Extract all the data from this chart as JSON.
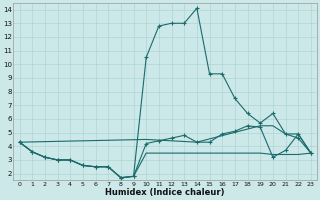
{
  "xlabel": "Humidex (Indice chaleur)",
  "xlim": [
    -0.5,
    23.5
  ],
  "ylim": [
    1.5,
    14.5
  ],
  "yticks": [
    2,
    3,
    4,
    5,
    6,
    7,
    8,
    9,
    10,
    11,
    12,
    13,
    14
  ],
  "xticks": [
    0,
    1,
    2,
    3,
    4,
    5,
    6,
    7,
    8,
    9,
    10,
    11,
    12,
    13,
    14,
    15,
    16,
    17,
    18,
    19,
    20,
    21,
    22,
    23
  ],
  "bg_color": "#cce8e8",
  "line_color": "#1a6b6b",
  "grid_color": "#aed4d4",
  "line1_x": [
    0,
    1,
    2,
    3,
    4,
    5,
    6,
    7,
    8,
    9,
    10,
    11,
    12,
    13,
    14,
    15,
    16,
    17,
    18,
    19,
    20,
    21,
    22,
    23
  ],
  "line1_y": [
    4.3,
    3.6,
    3.2,
    3.0,
    3.0,
    2.6,
    2.5,
    2.5,
    1.7,
    1.8,
    10.5,
    12.8,
    13.0,
    13.0,
    14.1,
    9.3,
    9.3,
    7.5,
    6.4,
    5.7,
    6.4,
    4.9,
    4.6,
    3.5
  ],
  "line2_x": [
    0,
    1,
    2,
    3,
    4,
    5,
    6,
    7,
    8,
    9,
    10,
    11,
    12,
    13,
    14,
    15,
    16,
    17,
    18,
    19,
    20,
    21,
    22,
    23
  ],
  "line2_y": [
    4.3,
    3.6,
    3.2,
    3.0,
    3.0,
    2.6,
    2.5,
    2.5,
    1.7,
    1.8,
    4.2,
    4.4,
    4.6,
    4.8,
    4.3,
    4.3,
    4.9,
    5.1,
    5.5,
    5.4,
    3.2,
    3.7,
    4.9,
    3.5
  ],
  "line3_x": [
    0,
    1,
    2,
    3,
    4,
    5,
    6,
    7,
    8,
    9,
    10,
    11,
    12,
    13,
    14,
    15,
    16,
    17,
    18,
    19,
    20,
    21,
    22,
    23
  ],
  "line3_y": [
    4.3,
    3.6,
    3.2,
    3.0,
    3.0,
    2.6,
    2.5,
    2.5,
    1.7,
    1.8,
    3.5,
    3.5,
    3.5,
    3.5,
    3.5,
    3.5,
    3.5,
    3.5,
    3.5,
    3.5,
    3.4,
    3.4,
    3.4,
    3.5
  ],
  "line4_x": [
    0,
    10,
    14,
    19,
    20,
    21,
    22,
    23
  ],
  "line4_y": [
    4.3,
    4.5,
    4.3,
    5.5,
    5.5,
    4.9,
    4.9,
    3.5
  ]
}
